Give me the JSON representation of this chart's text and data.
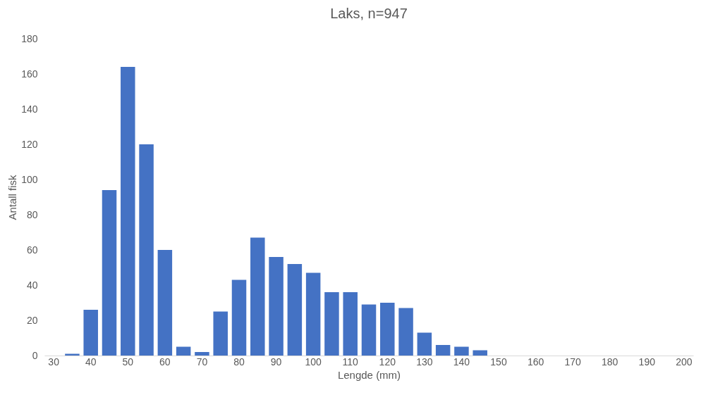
{
  "chart_data": {
    "type": "bar",
    "title": "Laks, n=947",
    "xlabel": "Lengde (mm)",
    "ylabel": "Antall fisk",
    "categories": [
      "30",
      null,
      "40",
      null,
      "50",
      null,
      "60",
      null,
      "70",
      null,
      "80",
      null,
      "90",
      null,
      "100",
      null,
      "110",
      null,
      "120",
      null,
      "130",
      null,
      "140",
      null,
      "150",
      null,
      "160",
      null,
      "170",
      null,
      "180",
      null,
      "190",
      null,
      "200"
    ],
    "values": [
      0,
      1,
      26,
      94,
      164,
      120,
      60,
      5,
      2,
      25,
      43,
      67,
      56,
      52,
      47,
      36,
      36,
      29,
      30,
      27,
      13,
      6,
      5,
      3,
      0,
      0,
      0,
      0,
      0,
      0,
      0,
      0,
      0,
      0,
      0
    ],
    "color": "#4472c4",
    "ylim": [
      0,
      180
    ],
    "yticks": [
      0,
      20,
      40,
      60,
      80,
      100,
      120,
      140,
      160,
      180
    ],
    "grid": false,
    "legend": false
  }
}
